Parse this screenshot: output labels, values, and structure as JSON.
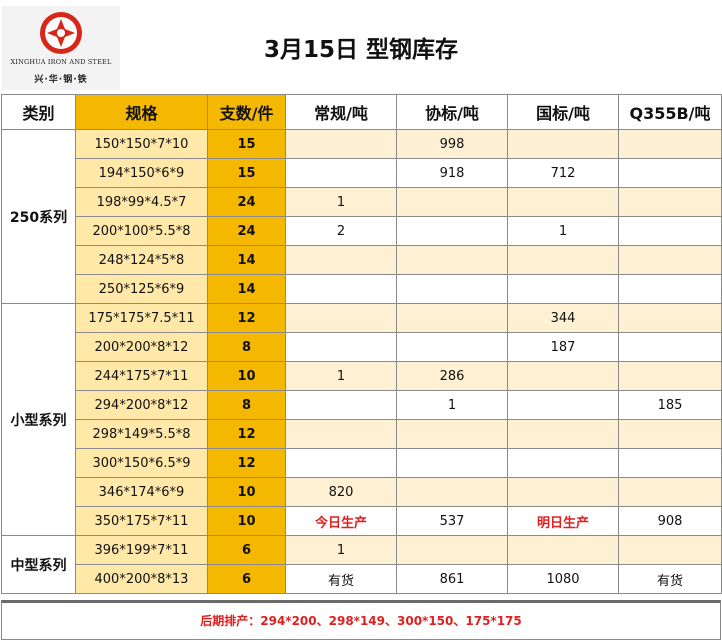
{
  "logo": {
    "en": "XINGHUA IRON AND STEEL",
    "cn": "兴·华·钢·铁"
  },
  "title": "3月15日 型钢库存",
  "headers": [
    "类别",
    "规格",
    "支数/件",
    "常规/吨",
    "协标/吨",
    "国标/吨",
    "Q355B/吨"
  ],
  "groups": [
    {
      "category": "250系列",
      "rows": [
        {
          "spec": "150*150*7*10",
          "qty": "15",
          "changgui": "",
          "xiebiao": "998",
          "guobiao": "",
          "q355b": ""
        },
        {
          "spec": "194*150*6*9",
          "qty": "15",
          "changgui": "",
          "xiebiao": "918",
          "guobiao": "712",
          "q355b": ""
        },
        {
          "spec": "198*99*4.5*7",
          "qty": "24",
          "changgui": "1",
          "xiebiao": "",
          "guobiao": "",
          "q355b": ""
        },
        {
          "spec": "200*100*5.5*8",
          "qty": "24",
          "changgui": "2",
          "xiebiao": "",
          "guobiao": "1",
          "q355b": ""
        },
        {
          "spec": "248*124*5*8",
          "qty": "14",
          "changgui": "",
          "xiebiao": "",
          "guobiao": "",
          "q355b": ""
        },
        {
          "spec": "250*125*6*9",
          "qty": "14",
          "changgui": "",
          "xiebiao": "",
          "guobiao": "",
          "q355b": ""
        }
      ]
    },
    {
      "category": "小型系列",
      "rows": [
        {
          "spec": "175*175*7.5*11",
          "qty": "12",
          "changgui": "",
          "xiebiao": "",
          "guobiao": "344",
          "q355b": ""
        },
        {
          "spec": "200*200*8*12",
          "qty": "8",
          "changgui": "",
          "xiebiao": "",
          "guobiao": "187",
          "q355b": ""
        },
        {
          "spec": "244*175*7*11",
          "qty": "10",
          "changgui": "1",
          "xiebiao": "286",
          "guobiao": "",
          "q355b": ""
        },
        {
          "spec": "294*200*8*12",
          "qty": "8",
          "changgui": "",
          "xiebiao": "1",
          "guobiao": "",
          "q355b": "185"
        },
        {
          "spec": "298*149*5.5*8",
          "qty": "12",
          "changgui": "",
          "xiebiao": "",
          "guobiao": "",
          "q355b": ""
        },
        {
          "spec": "300*150*6.5*9",
          "qty": "12",
          "changgui": "",
          "xiebiao": "",
          "guobiao": "",
          "q355b": ""
        },
        {
          "spec": "346*174*6*9",
          "qty": "10",
          "changgui": "820",
          "xiebiao": "",
          "guobiao": "",
          "q355b": ""
        },
        {
          "spec": "350*175*7*11",
          "qty": "10",
          "changgui": "今日生产",
          "xiebiao": "537",
          "guobiao": "明日生产",
          "q355b": "908"
        }
      ]
    },
    {
      "category": "中型系列",
      "rows": [
        {
          "spec": "396*199*7*11",
          "qty": "6",
          "changgui": "1",
          "xiebiao": "",
          "guobiao": "",
          "q355b": ""
        },
        {
          "spec": "400*200*8*13",
          "qty": "6",
          "changgui": "有货",
          "xiebiao": "861",
          "guobiao": "1080",
          "q355b": "有货"
        }
      ]
    }
  ],
  "footer": "后期排产：294*200、298*149、300*150、175*175",
  "colors": {
    "header_yellow": "#f5b800",
    "spec_fill": "#ffe8a8",
    "row_alt": "#fdf0d3",
    "accent_red": "#e02020"
  }
}
